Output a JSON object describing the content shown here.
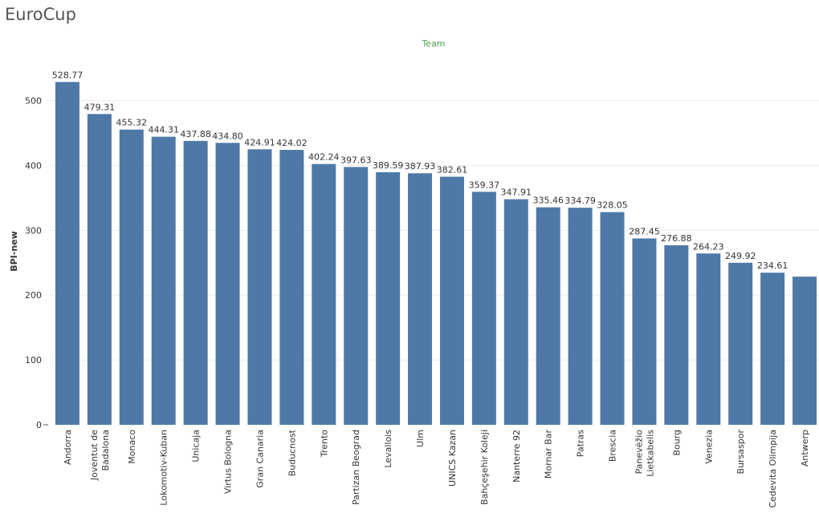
{
  "page": {
    "title": "EuroCup"
  },
  "chart_data": {
    "type": "bar",
    "title": "",
    "column_header": "Team",
    "xlabel": "",
    "ylabel": "BPI-new",
    "ylim": [
      0,
      560
    ],
    "yticks": [
      0,
      100,
      200,
      300,
      400,
      500
    ],
    "grid": true,
    "bar_color": "#4e79a7",
    "categories": [
      "Andorra",
      "Joventut de Badalona",
      "Monaco",
      "Lokomotiv-Kuban",
      "Unicaja",
      "Virtus Bologna",
      "Gran Canaria",
      "Buducnost",
      "Trento",
      "Partizan Beograd",
      "Levallois",
      "Ulm",
      "UNICS Kazan",
      "Bahçeşehir Koleji",
      "Nanterre 92",
      "Mornar Bar",
      "Patras",
      "Brescia",
      "Panevėžio Lietkabelis",
      "Bourg",
      "Venezia",
      "Bursaspor",
      "Cedevita Olimpija",
      "Antwerp"
    ],
    "category_lines": [
      [
        "Andorra"
      ],
      [
        "Joventut de",
        "Badalona"
      ],
      [
        "Monaco"
      ],
      [
        "Lokomotiv-Kuban"
      ],
      [
        "Unicaja"
      ],
      [
        "Virtus Bologna"
      ],
      [
        "Gran Canaria"
      ],
      [
        "Buducnost"
      ],
      [
        "Trento"
      ],
      [
        "Partizan Beograd"
      ],
      [
        "Levallois"
      ],
      [
        "Ulm"
      ],
      [
        "UNICS Kazan"
      ],
      [
        "Bahçeşehir Koleji"
      ],
      [
        "Nanterre 92"
      ],
      [
        "Mornar Bar"
      ],
      [
        "Patras"
      ],
      [
        "Brescia"
      ],
      [
        "Panevėžio",
        "Lietkabelis"
      ],
      [
        "Bourg"
      ],
      [
        "Venezia"
      ],
      [
        "Bursaspor"
      ],
      [
        "Cedevita Olimpija"
      ],
      [
        "Antwerp"
      ]
    ],
    "values": [
      528.77,
      479.31,
      455.32,
      444.31,
      437.88,
      434.8,
      424.91,
      424.02,
      402.24,
      397.63,
      389.59,
      387.93,
      382.61,
      359.37,
      347.91,
      335.46,
      334.79,
      328.05,
      287.45,
      276.88,
      264.23,
      249.92,
      234.61,
      228.5
    ],
    "data_labels": [
      "528.77",
      "479.31",
      "455.32",
      "444.31",
      "437.88",
      "434.80",
      "424.91",
      "424.02",
      "402.24",
      "397.63",
      "389.59",
      "387.93",
      "382.61",
      "359.37",
      "347.91",
      "335.46",
      "334.79",
      "328.05",
      "287.45",
      "276.88",
      "264.23",
      "249.92",
      "234.61",
      ""
    ]
  }
}
